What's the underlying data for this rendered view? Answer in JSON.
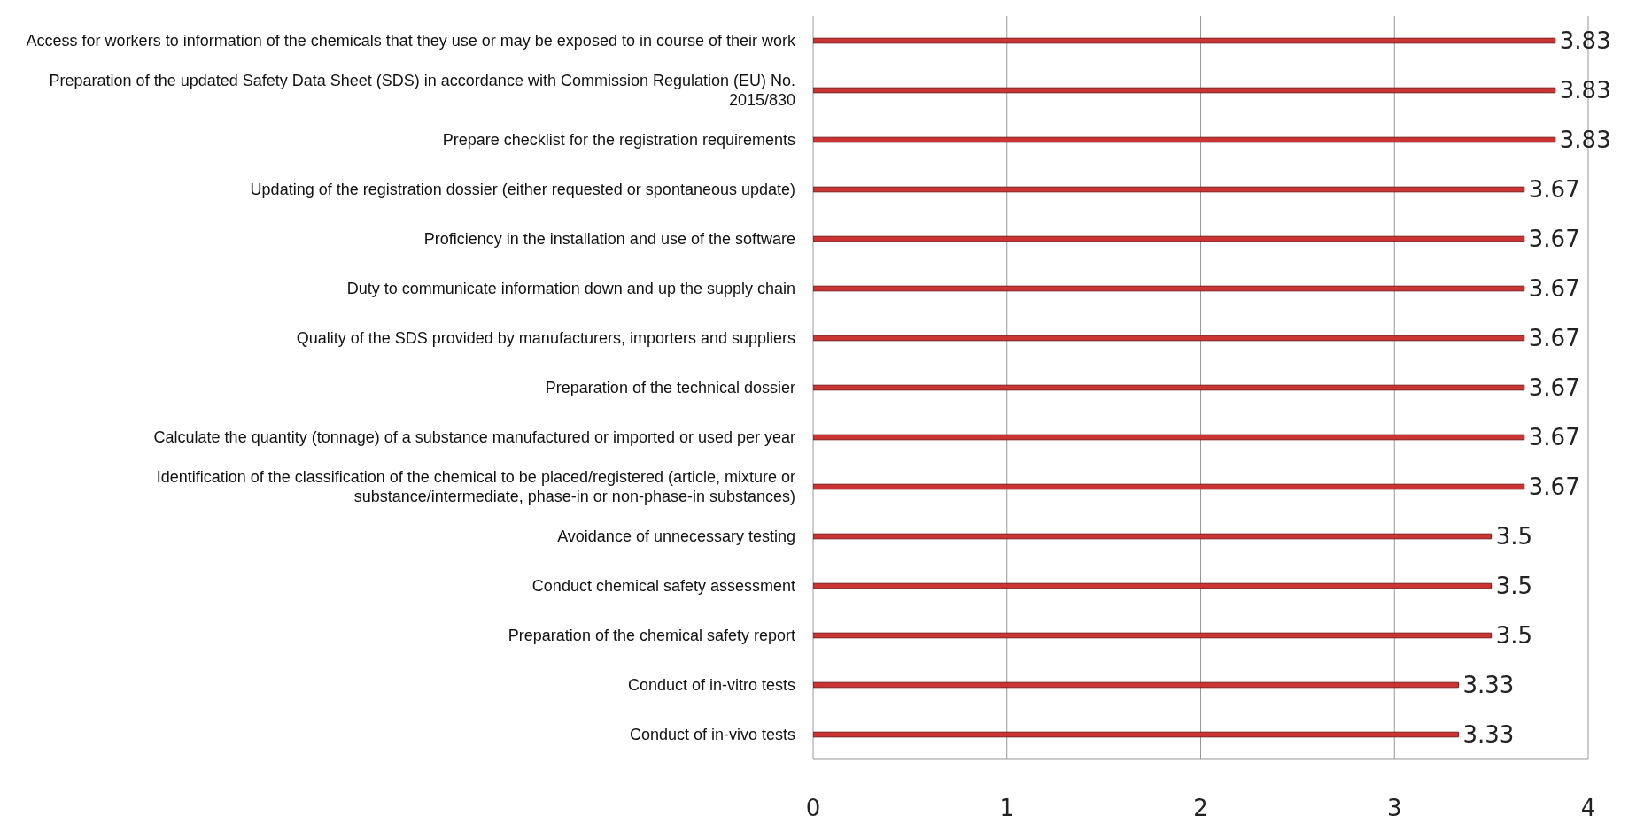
{
  "chart_data": {
    "type": "bar",
    "orientation": "horizontal",
    "categories": [
      "Access for workers to information of the chemicals that they use or may be exposed to in course of their work",
      "Preparation of the updated Safety Data Sheet (SDS) in accordance with Commission Regulation (EU) No. 2015/830",
      "Prepare checklist for the registration requirements",
      "Updating of the registration dossier (either requested or spontaneous update)",
      "Proficiency in the installation and use of the software",
      "Duty to communicate information down and up the supply chain",
      "Quality of the SDS provided by manufacturers, importers and suppliers",
      "Preparation of the technical dossier",
      "Calculate the quantity (tonnage) of a substance manufactured or imported or used per year",
      "Identification of the classification of the chemical to be placed/registered (article, mixture or substance/intermediate, phase-in or non-phase-in substances)",
      "Avoidance of unnecessary testing",
      "Conduct chemical safety assessment",
      "Preparation of the chemical safety report",
      "Conduct of in-vitro tests",
      "Conduct of in-vivo tests"
    ],
    "values": [
      3.83,
      3.83,
      3.83,
      3.67,
      3.67,
      3.67,
      3.67,
      3.67,
      3.67,
      3.67,
      3.5,
      3.5,
      3.5,
      3.33,
      3.33
    ],
    "color": "#cc3333",
    "xlim": [
      0,
      4
    ],
    "xticks": [
      0,
      1,
      2,
      3,
      4
    ],
    "grid": "x",
    "data_labels": true
  }
}
